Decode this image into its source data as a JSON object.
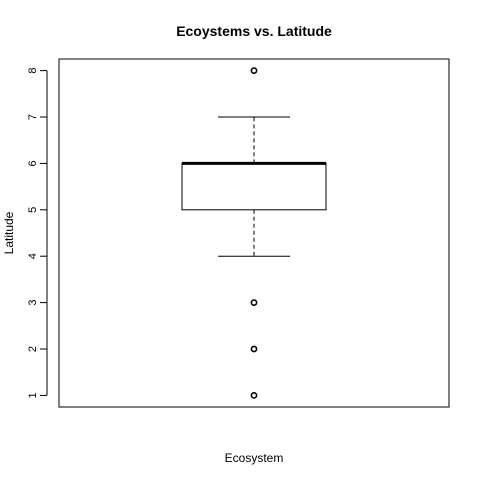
{
  "chart_data": {
    "type": "boxplot",
    "title": "Ecoystems vs. Latitude",
    "xlabel": "Ecosystem",
    "ylabel": "Latitude",
    "ylim": [
      0.75,
      8.25
    ],
    "yticks": [
      "1",
      "2",
      "3",
      "4",
      "5",
      "6",
      "7",
      "8"
    ],
    "grid": false,
    "box": {
      "whisker_low": 4,
      "q1": 5,
      "median": 6,
      "q3": 6,
      "whisker_high": 7,
      "outliers": [
        1,
        2,
        3,
        8
      ]
    }
  }
}
